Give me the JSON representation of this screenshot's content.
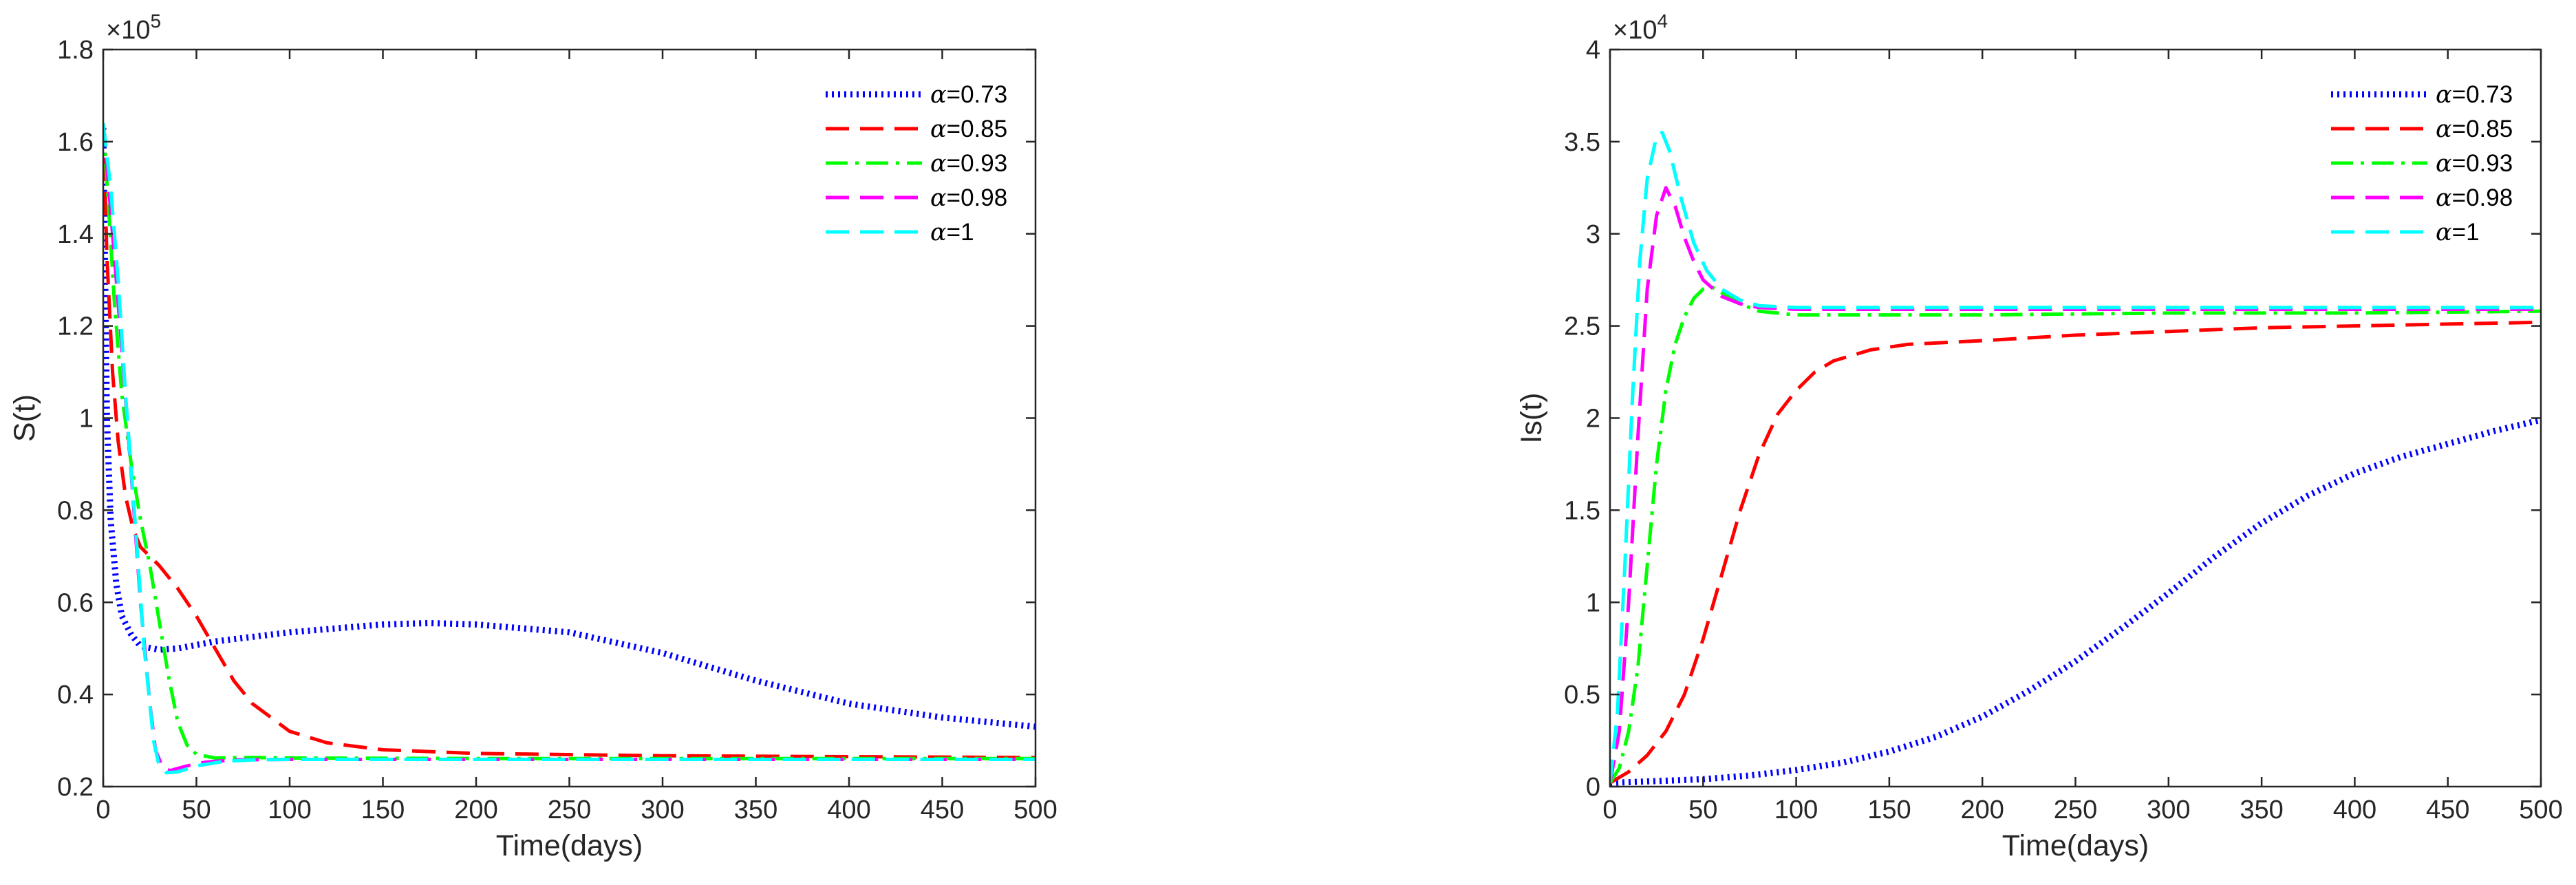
{
  "chart_data": [
    {
      "type": "line",
      "title": "",
      "xlabel": "Time(days)",
      "ylabel": "S(t)",
      "exponent_label": "×10",
      "exponent_power": "5",
      "xlim": [
        0,
        500
      ],
      "ylim": [
        0.2,
        1.8
      ],
      "x_ticks": [
        0,
        50,
        100,
        150,
        200,
        250,
        300,
        350,
        400,
        450,
        500
      ],
      "x_tick_labels": [
        "0",
        "50",
        "100",
        "150",
        "200",
        "250",
        "300",
        "350",
        "400",
        "450",
        "500"
      ],
      "y_ticks": [
        0.2,
        0.4,
        0.6,
        0.8,
        1.0,
        1.2,
        1.4,
        1.6,
        1.8
      ],
      "y_tick_labels": [
        "0.2",
        "0.4",
        "0.6",
        "0.8",
        "1",
        "1.2",
        "1.4",
        "1.6",
        "1.8"
      ],
      "grid": false,
      "legend_position": "top-right",
      "series": [
        {
          "name": "α=0.73",
          "alpha_symbol": "α",
          "alpha_value": "=0.73",
          "color": "#0000ff",
          "style": "dotted",
          "points": [
            [
              0,
              1.63
            ],
            [
              2,
              1.0
            ],
            [
              4,
              0.78
            ],
            [
              7,
              0.64
            ],
            [
              10,
              0.57
            ],
            [
              15,
              0.53
            ],
            [
              20,
              0.505
            ],
            [
              30,
              0.497
            ],
            [
              40,
              0.5
            ],
            [
              60,
              0.515
            ],
            [
              100,
              0.535
            ],
            [
              150,
              0.552
            ],
            [
              175,
              0.555
            ],
            [
              200,
              0.552
            ],
            [
              250,
              0.535
            ],
            [
              300,
              0.49
            ],
            [
              350,
              0.43
            ],
            [
              400,
              0.38
            ],
            [
              450,
              0.35
            ],
            [
              500,
              0.33
            ]
          ]
        },
        {
          "name": "α=0.85",
          "alpha_symbol": "α",
          "alpha_value": "=0.85",
          "color": "#ff0000",
          "style": "dashed",
          "points": [
            [
              0,
              1.64
            ],
            [
              2,
              1.35
            ],
            [
              5,
              1.1
            ],
            [
              8,
              0.95
            ],
            [
              12,
              0.83
            ],
            [
              16,
              0.76
            ],
            [
              20,
              0.72
            ],
            [
              30,
              0.68
            ],
            [
              40,
              0.63
            ],
            [
              50,
              0.57
            ],
            [
              60,
              0.5
            ],
            [
              70,
              0.43
            ],
            [
              80,
              0.38
            ],
            [
              100,
              0.32
            ],
            [
              120,
              0.295
            ],
            [
              150,
              0.28
            ],
            [
              200,
              0.272
            ],
            [
              300,
              0.267
            ],
            [
              400,
              0.265
            ],
            [
              500,
              0.263
            ]
          ]
        },
        {
          "name": "α=0.93",
          "alpha_symbol": "α",
          "alpha_value": "=0.93",
          "color": "#00ff00",
          "style": "dashdot",
          "points": [
            [
              0,
              1.64
            ],
            [
              3,
              1.45
            ],
            [
              6,
              1.25
            ],
            [
              10,
              1.05
            ],
            [
              15,
              0.9
            ],
            [
              20,
              0.78
            ],
            [
              25,
              0.68
            ],
            [
              30,
              0.56
            ],
            [
              35,
              0.44
            ],
            [
              40,
              0.34
            ],
            [
              45,
              0.29
            ],
            [
              50,
              0.27
            ],
            [
              60,
              0.262
            ],
            [
              80,
              0.263
            ],
            [
              100,
              0.262
            ],
            [
              200,
              0.261
            ],
            [
              300,
              0.261
            ],
            [
              400,
              0.261
            ],
            [
              500,
              0.261
            ]
          ]
        },
        {
          "name": "α=0.98",
          "alpha_symbol": "α",
          "alpha_value": "=0.98",
          "color": "#ff00ff",
          "style": "dashed",
          "points": [
            [
              0,
              1.64
            ],
            [
              3,
              1.5
            ],
            [
              6,
              1.35
            ],
            [
              10,
              1.15
            ],
            [
              15,
              0.88
            ],
            [
              20,
              0.6
            ],
            [
              25,
              0.38
            ],
            [
              28,
              0.28
            ],
            [
              32,
              0.24
            ],
            [
              36,
              0.235
            ],
            [
              45,
              0.245
            ],
            [
              55,
              0.253
            ],
            [
              70,
              0.258
            ],
            [
              100,
              0.259
            ],
            [
              200,
              0.259
            ],
            [
              300,
              0.259
            ],
            [
              400,
              0.259
            ],
            [
              500,
              0.259
            ]
          ]
        },
        {
          "name": "α=1",
          "alpha_symbol": "α",
          "alpha_value": "=1",
          "color": "#00ffff",
          "style": "dashed",
          "points": [
            [
              0,
              1.64
            ],
            [
              4,
              1.5
            ],
            [
              8,
              1.3
            ],
            [
              12,
              1.05
            ],
            [
              17,
              0.78
            ],
            [
              22,
              0.5
            ],
            [
              27,
              0.3
            ],
            [
              30,
              0.245
            ],
            [
              34,
              0.23
            ],
            [
              40,
              0.232
            ],
            [
              50,
              0.245
            ],
            [
              65,
              0.255
            ],
            [
              80,
              0.258
            ],
            [
              100,
              0.259
            ],
            [
              200,
              0.259
            ],
            [
              300,
              0.259
            ],
            [
              400,
              0.259
            ],
            [
              500,
              0.259
            ]
          ]
        }
      ]
    },
    {
      "type": "line",
      "title": "",
      "xlabel": "Time(days)",
      "ylabel": "Is(t)",
      "exponent_label": "×10",
      "exponent_power": "4",
      "xlim": [
        0,
        500
      ],
      "ylim": [
        0,
        4
      ],
      "x_ticks": [
        0,
        50,
        100,
        150,
        200,
        250,
        300,
        350,
        400,
        450,
        500
      ],
      "x_tick_labels": [
        "0",
        "50",
        "100",
        "150",
        "200",
        "250",
        "300",
        "350",
        "400",
        "450",
        "500"
      ],
      "y_ticks": [
        0,
        0.5,
        1.0,
        1.5,
        2.0,
        2.5,
        3.0,
        3.5,
        4.0
      ],
      "y_tick_labels": [
        "0",
        "0.5",
        "1",
        "1.5",
        "2",
        "2.5",
        "3",
        "3.5",
        "4"
      ],
      "grid": false,
      "legend_position": "top-right",
      "series": [
        {
          "name": "α=0.73",
          "alpha_symbol": "α",
          "alpha_value": "=0.73",
          "color": "#0000ff",
          "style": "dotted",
          "points": [
            [
              0,
              0.02
            ],
            [
              25,
              0.03
            ],
            [
              50,
              0.04
            ],
            [
              75,
              0.06
            ],
            [
              100,
              0.09
            ],
            [
              125,
              0.13
            ],
            [
              150,
              0.19
            ],
            [
              175,
              0.27
            ],
            [
              200,
              0.38
            ],
            [
              225,
              0.52
            ],
            [
              250,
              0.68
            ],
            [
              275,
              0.86
            ],
            [
              300,
              1.05
            ],
            [
              325,
              1.25
            ],
            [
              350,
              1.43
            ],
            [
              375,
              1.58
            ],
            [
              400,
              1.7
            ],
            [
              425,
              1.79
            ],
            [
              450,
              1.86
            ],
            [
              475,
              1.93
            ],
            [
              500,
              1.99
            ]
          ]
        },
        {
          "name": "α=0.85",
          "alpha_symbol": "α",
          "alpha_value": "=0.85",
          "color": "#ff0000",
          "style": "dashed",
          "points": [
            [
              0,
              0.02
            ],
            [
              10,
              0.08
            ],
            [
              20,
              0.17
            ],
            [
              30,
              0.3
            ],
            [
              40,
              0.5
            ],
            [
              50,
              0.8
            ],
            [
              60,
              1.15
            ],
            [
              70,
              1.5
            ],
            [
              80,
              1.8
            ],
            [
              90,
              2.02
            ],
            [
              100,
              2.15
            ],
            [
              110,
              2.25
            ],
            [
              120,
              2.31
            ],
            [
              140,
              2.37
            ],
            [
              160,
              2.4
            ],
            [
              200,
              2.42
            ],
            [
              250,
              2.45
            ],
            [
              300,
              2.47
            ],
            [
              350,
              2.49
            ],
            [
              400,
              2.5
            ],
            [
              450,
              2.51
            ],
            [
              500,
              2.52
            ]
          ]
        },
        {
          "name": "α=0.93",
          "alpha_symbol": "α",
          "alpha_value": "=0.93",
          "color": "#00ff00",
          "style": "dashdot",
          "points": [
            [
              0,
              0.02
            ],
            [
              5,
              0.1
            ],
            [
              10,
              0.3
            ],
            [
              15,
              0.65
            ],
            [
              20,
              1.2
            ],
            [
              25,
              1.75
            ],
            [
              30,
              2.15
            ],
            [
              35,
              2.4
            ],
            [
              40,
              2.55
            ],
            [
              45,
              2.65
            ],
            [
              50,
              2.7
            ],
            [
              55,
              2.71
            ],
            [
              60,
              2.68
            ],
            [
              70,
              2.62
            ],
            [
              80,
              2.58
            ],
            [
              100,
              2.56
            ],
            [
              150,
              2.56
            ],
            [
              200,
              2.56
            ],
            [
              300,
              2.57
            ],
            [
              400,
              2.57
            ],
            [
              500,
              2.58
            ]
          ]
        },
        {
          "name": "α=0.98",
          "alpha_symbol": "α",
          "alpha_value": "=0.98",
          "color": "#ff00ff",
          "style": "dashed",
          "points": [
            [
              0,
              0.02
            ],
            [
              5,
              0.3
            ],
            [
              10,
              1.0
            ],
            [
              15,
              1.9
            ],
            [
              20,
              2.7
            ],
            [
              25,
              3.1
            ],
            [
              30,
              3.25
            ],
            [
              35,
              3.15
            ],
            [
              40,
              2.98
            ],
            [
              45,
              2.85
            ],
            [
              50,
              2.75
            ],
            [
              60,
              2.66
            ],
            [
              70,
              2.62
            ],
            [
              80,
              2.6
            ],
            [
              100,
              2.59
            ],
            [
              200,
              2.59
            ],
            [
              300,
              2.59
            ],
            [
              400,
              2.59
            ],
            [
              500,
              2.59
            ]
          ]
        },
        {
          "name": "α=1",
          "alpha_symbol": "α",
          "alpha_value": "=1",
          "color": "#00ffff",
          "style": "dashed",
          "points": [
            [
              0,
              0.02
            ],
            [
              4,
              0.4
            ],
            [
              8,
              1.2
            ],
            [
              12,
              2.1
            ],
            [
              16,
              2.85
            ],
            [
              20,
              3.3
            ],
            [
              25,
              3.53
            ],
            [
              28,
              3.55
            ],
            [
              32,
              3.45
            ],
            [
              38,
              3.2
            ],
            [
              45,
              2.95
            ],
            [
              52,
              2.8
            ],
            [
              60,
              2.7
            ],
            [
              70,
              2.64
            ],
            [
              80,
              2.61
            ],
            [
              100,
              2.6
            ],
            [
              200,
              2.6
            ],
            [
              300,
              2.6
            ],
            [
              400,
              2.6
            ],
            [
              500,
              2.6
            ]
          ]
        }
      ]
    }
  ]
}
